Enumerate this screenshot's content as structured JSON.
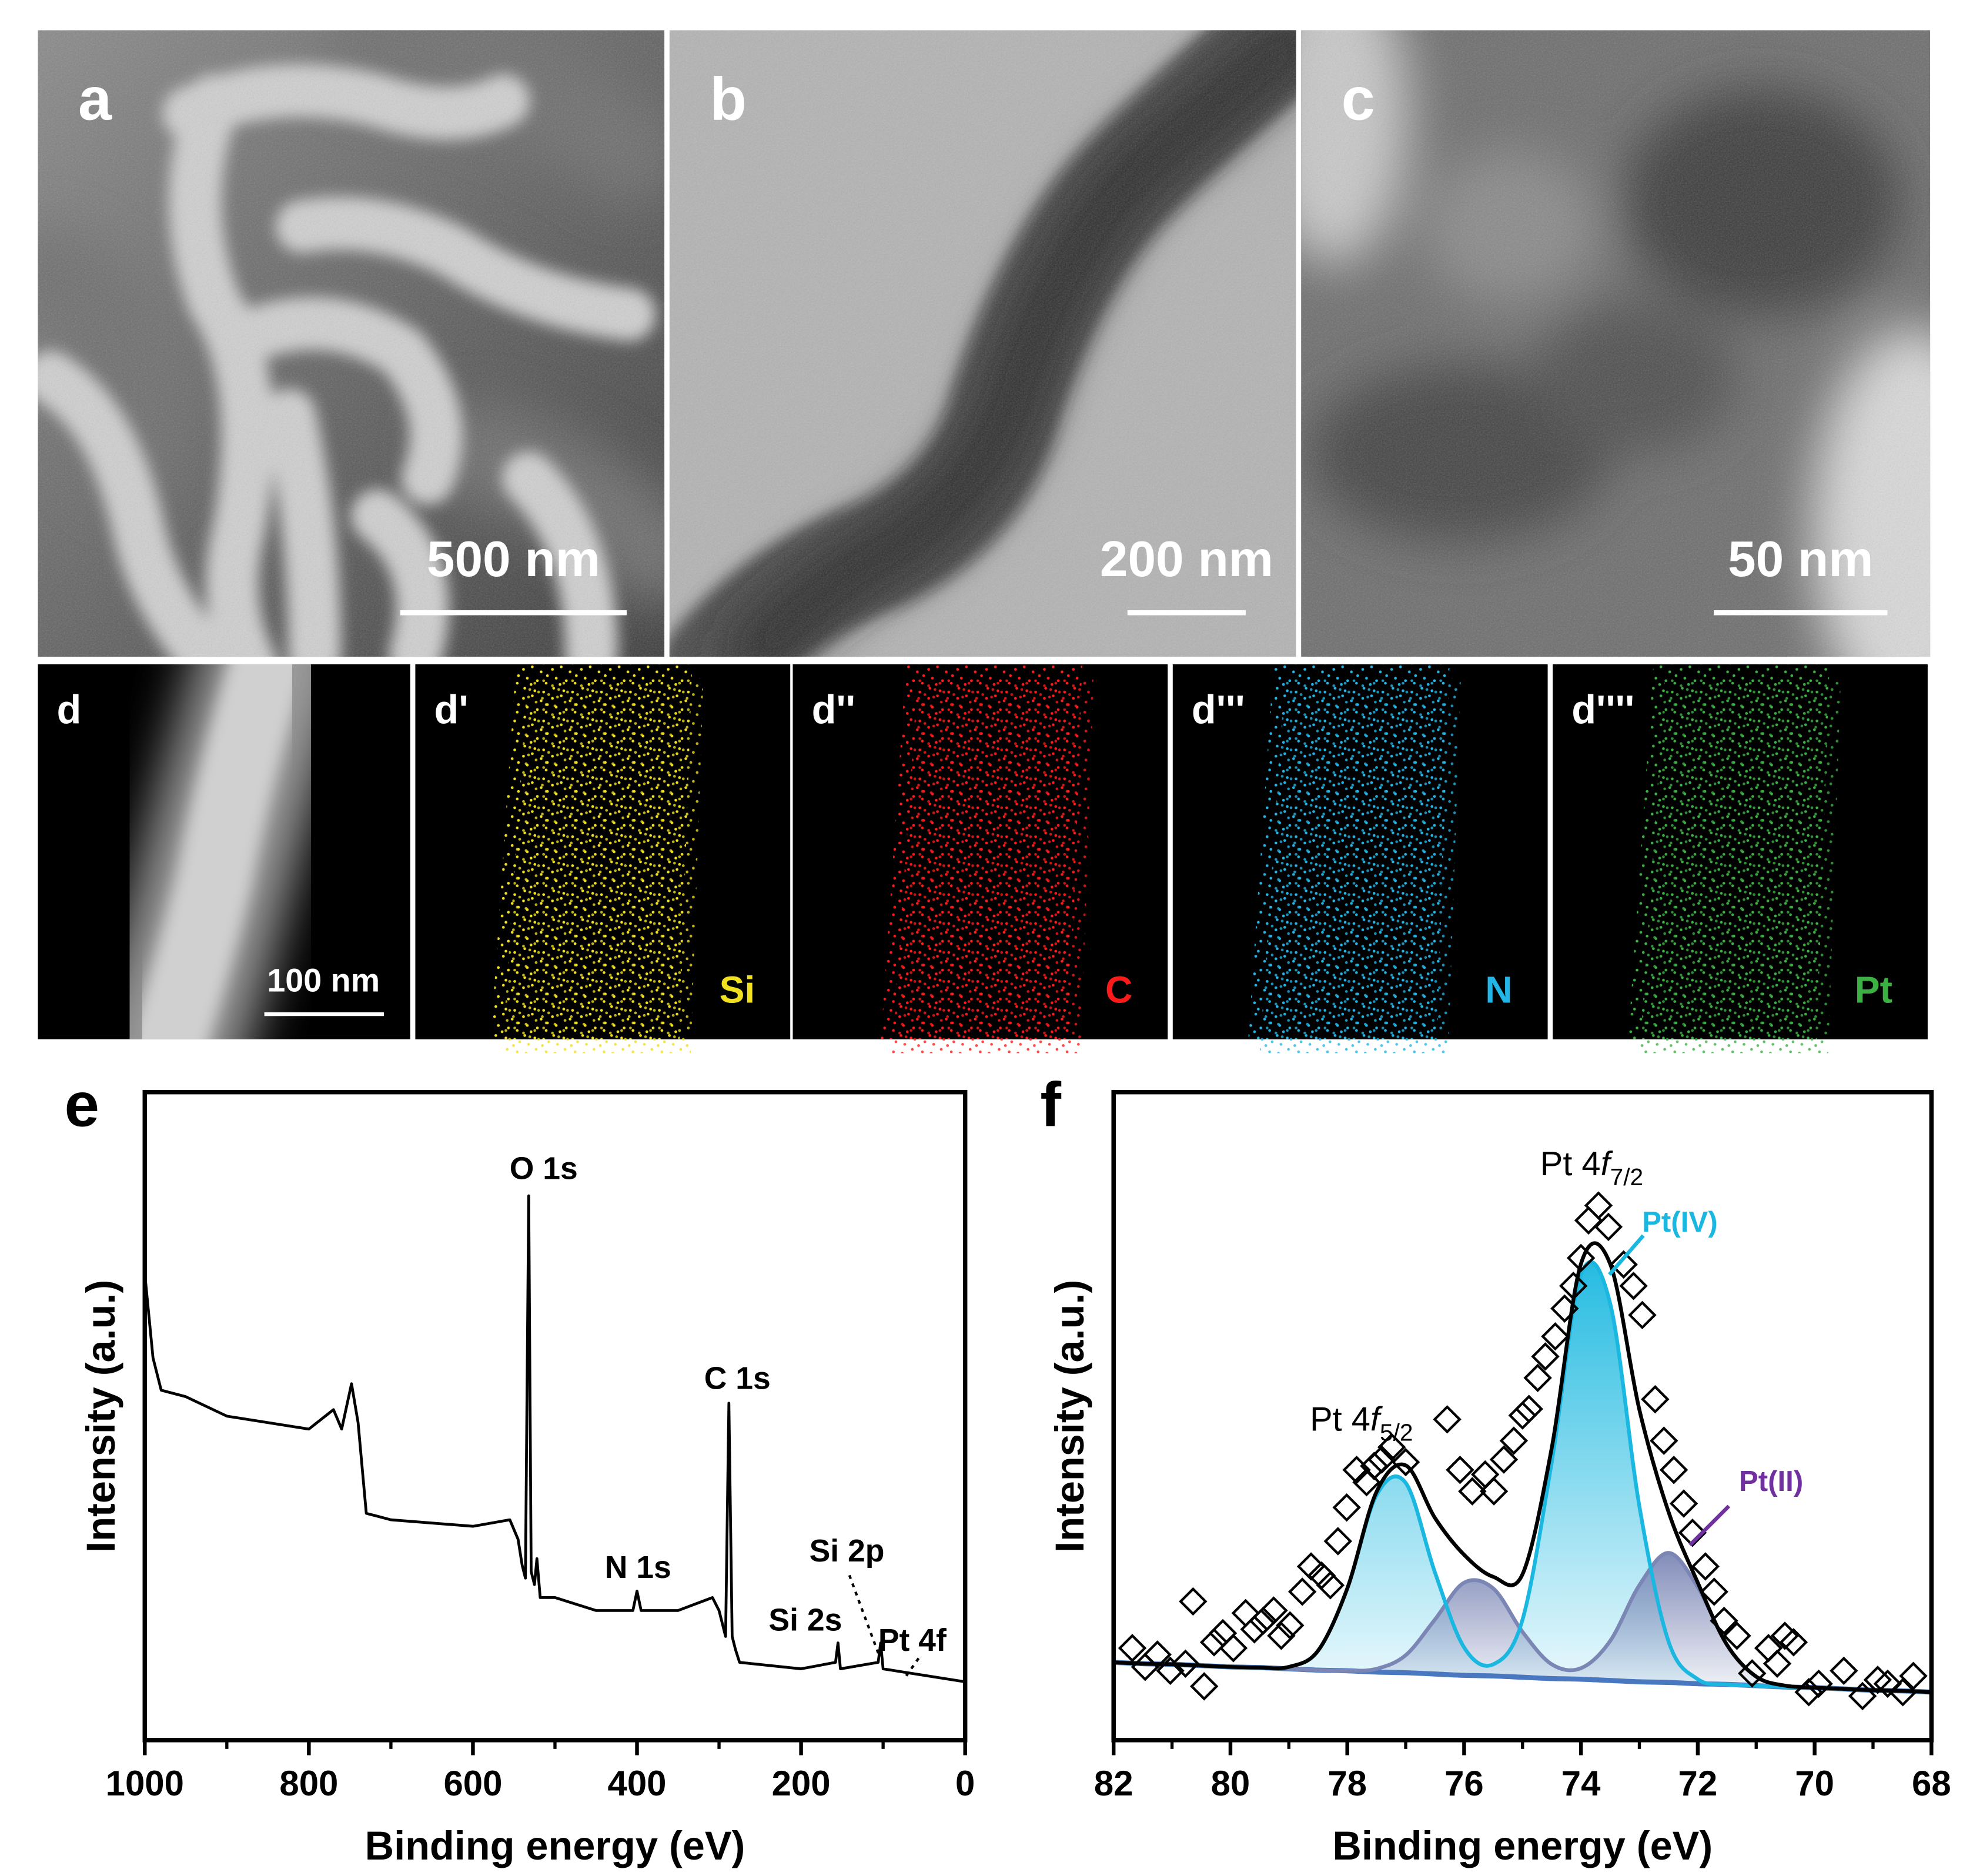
{
  "panels": [
    {
      "label": "a",
      "scale": "500 nm"
    },
    {
      "label": "b",
      "scale": "200 nm"
    },
    {
      "label": "c",
      "scale": "50 nm"
    }
  ],
  "maps": [
    {
      "label": "d",
      "scale": "100 nm"
    },
    {
      "label": "d'",
      "element": "Si",
      "color": "#f0e020"
    },
    {
      "label": "d''",
      "element": "C",
      "color": "#ff1a1a"
    },
    {
      "label": "d'''",
      "element": "N",
      "color": "#22b5e6"
    },
    {
      "label": "d''''",
      "element": "Pt",
      "color": "#3cb043"
    }
  ],
  "chart_data": [
    {
      "type": "line",
      "panel": "e",
      "xlabel": "Binding energy (eV)",
      "ylabel": "Intensity (a.u.)",
      "xlim": [
        1000,
        0
      ],
      "ylim": [
        0,
        100
      ],
      "xticks": [
        1000,
        800,
        600,
        400,
        200,
        0
      ],
      "xminorticks": [
        900,
        700,
        500,
        300,
        100
      ],
      "x": [
        1000,
        990,
        980,
        950,
        900,
        800,
        770,
        760,
        748,
        740,
        730,
        700,
        600,
        555,
        545,
        540,
        536,
        532,
        529,
        525,
        522,
        518,
        500,
        450,
        405,
        400,
        395,
        350,
        308,
        300,
        292,
        288,
        284,
        280,
        275,
        200,
        158,
        155,
        152,
        106,
        103,
        100,
        50,
        0
      ],
      "series": [
        {
          "color": "#000000",
          "values": [
            72,
            59,
            54,
            53,
            50,
            48,
            51,
            48,
            55,
            49,
            35,
            34,
            33,
            34,
            31,
            27,
            25,
            84,
            26,
            24,
            28,
            22,
            22,
            20,
            20,
            23,
            20,
            20,
            22,
            20,
            16,
            52,
            16,
            14,
            12,
            11,
            12,
            15,
            11,
            12,
            15,
            11,
            10,
            9
          ]
        }
      ],
      "annotations": [
        "O 1s",
        "C 1s",
        "N 1s",
        "Si 2s",
        "Si 2p",
        "Pt 4f"
      ]
    },
    {
      "type": "xps-fit",
      "panel": "f",
      "xlabel": "Binding energy (eV)",
      "ylabel": "Intensity (a.u.)",
      "xlim": [
        82,
        68
      ],
      "ylim": [
        0,
        100
      ],
      "xticks": [
        82,
        80,
        78,
        76,
        74,
        72,
        70,
        68
      ],
      "xminorticks": [
        81,
        79,
        77,
        75,
        73,
        71,
        69
      ],
      "points": {
        "color": "#000000",
        "x": [
          81.68,
          81.46,
          81.25,
          81.03,
          80.77,
          80.64,
          80.45,
          80.28,
          80.13,
          79.95,
          79.74,
          79.59,
          79.44,
          79.26,
          79.13,
          78.98,
          78.77,
          78.62,
          78.44,
          78.29,
          78.16,
          78.01,
          77.84,
          77.67,
          77.54,
          77.41,
          77.24,
          77,
          76.29,
          76.07,
          75.86,
          75.64,
          75.49,
          75.32,
          75.15,
          75,
          74.89,
          74.74,
          74.61,
          74.44,
          74.28,
          74.13,
          74,
          73.87,
          73.7,
          73.53,
          73.27,
          73.1,
          72.95,
          72.73,
          72.58,
          72.41,
          72.24,
          72.09,
          71.87,
          71.72,
          71.55,
          71.33,
          71.07,
          70.79,
          70.64,
          70.51,
          70.36,
          70.1,
          69.93,
          69.5,
          69.18,
          68.92,
          68.75,
          68.49,
          68.31
        ],
        "values": [
          14.2,
          11.3,
          13.2,
          10.7,
          11.8,
          21.4,
          8.3,
          15.1,
          16.5,
          14.2,
          19.6,
          17.1,
          18.4,
          20,
          16.1,
          17.7,
          22.9,
          26.8,
          25.4,
          23.9,
          30.7,
          35.9,
          41.7,
          39.8,
          42.3,
          43.3,
          45.2,
          42.9,
          49.5,
          41.7,
          38.4,
          41,
          38.4,
          43.3,
          46.2,
          50.1,
          51.1,
          55.9,
          59.2,
          62.3,
          66.6,
          70.1,
          74.4,
          80.2,
          82.5,
          79.2,
          73.4,
          70.1,
          65.6,
          52.6,
          46.2,
          41.7,
          36.5,
          32,
          26.8,
          22.9,
          18.4,
          16.1,
          10.3,
          14.2,
          11.8,
          16.1,
          15.1,
          7.4,
          8.7,
          10.7,
          6.8,
          9.3,
          8.7,
          7.4,
          9.9
        ]
      },
      "x": [
        82,
        81.5,
        81,
        80.5,
        80,
        79.5,
        79,
        78.5,
        78,
        77.5,
        77,
        76.5,
        76,
        75.5,
        75,
        74.5,
        74,
        73.5,
        73,
        72.5,
        72,
        71.5,
        71,
        70.5,
        70,
        69.5,
        69,
        68.5,
        68
      ],
      "series": [
        {
          "color": "#4a78c0",
          "values": [
            12,
            11.8,
            11.7,
            11.5,
            11.3,
            11.2,
            11,
            10.8,
            10.7,
            10.5,
            10.4,
            10.2,
            10,
            9.9,
            9.7,
            9.5,
            9.4,
            9.2,
            9,
            8.9,
            8.7,
            8.6,
            8.4,
            8.2,
            8.1,
            7.9,
            7.7,
            7.6,
            7.4
          ]
        },
        {
          "name": "Pt(IV)",
          "color": "#1ab8e0",
          "label_color": "#1ab8e0",
          "values": [
            12,
            11.8,
            11.7,
            11.5,
            11.3,
            11.2,
            11.3,
            13.8,
            23.4,
            37.8,
            39.7,
            25.9,
            14.3,
            11.7,
            18.6,
            42.9,
            71.8,
            67.4,
            36.1,
            15.2,
            9.4,
            8.6,
            8.4,
            8.2,
            8.1,
            7.9,
            7.7,
            7.6,
            7.4
          ]
        },
        {
          "name": "Pt(II)",
          "color": "#7b86b5",
          "label_color": "#7030a0",
          "values": [
            12,
            11.8,
            11.7,
            11.5,
            11.3,
            11.2,
            11,
            10.8,
            10.7,
            11,
            13.1,
            18.6,
            24.3,
            23.4,
            16.7,
            11.7,
            11.1,
            15.3,
            23.9,
            28.9,
            23.6,
            14.7,
            9.8,
            8.4,
            8.1,
            7.9,
            7.7,
            7.6,
            7.4
          ]
        },
        {
          "color": "#000000",
          "values": [
            12,
            11.8,
            11.7,
            11.5,
            11.3,
            11.2,
            11.3,
            13.8,
            23.4,
            38.3,
            42.4,
            34.3,
            28.6,
            25.2,
            25.6,
            45.1,
            73.5,
            73.5,
            51,
            35.2,
            24.3,
            14.7,
            9.8,
            8.4,
            8.1,
            7.9,
            7.7,
            7.6,
            7.4
          ]
        }
      ],
      "annotations": [
        {
          "text": "Pt 4",
          "italic": "f",
          "sub": "7/2"
        },
        {
          "text": "Pt 4",
          "italic": "f",
          "sub": "5/2"
        }
      ]
    }
  ]
}
